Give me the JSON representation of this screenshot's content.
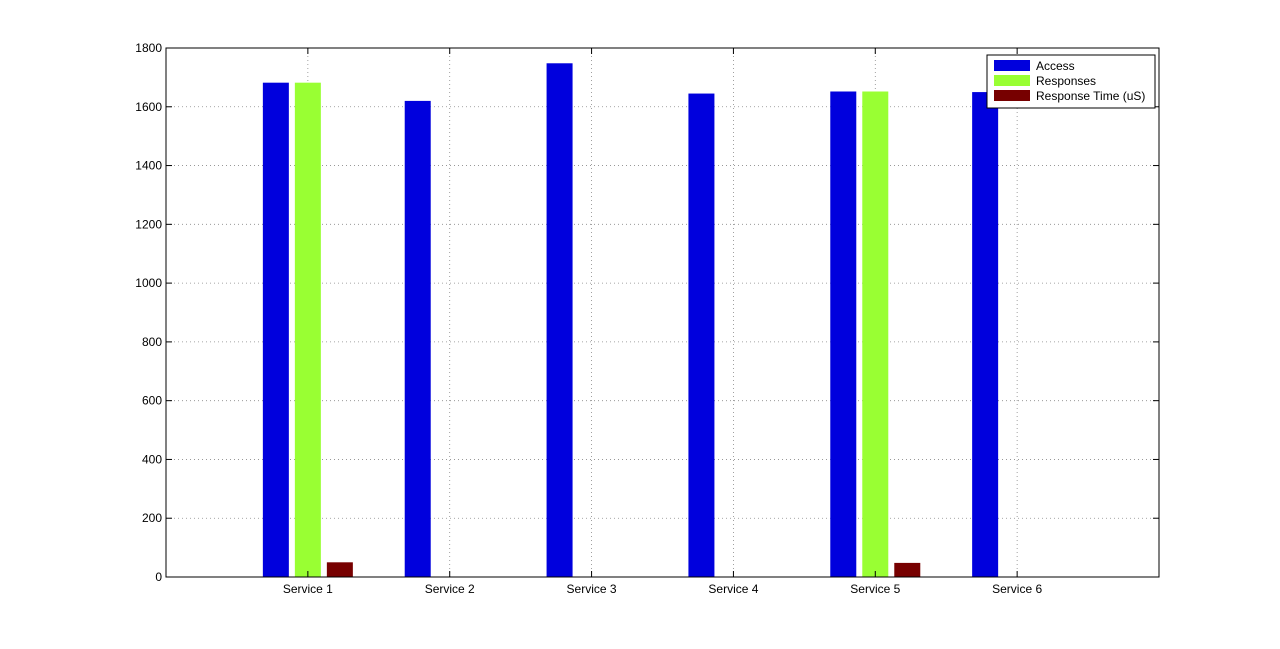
{
  "chart_data": {
    "type": "bar",
    "title": "",
    "xlabel": "",
    "ylabel": "",
    "categories": [
      "Service 1",
      "Service 2",
      "Service 3",
      "Service 4",
      "Service 5",
      "Service 6"
    ],
    "series": [
      {
        "name": "Access",
        "color": "#0000DD",
        "values": [
          1682,
          1620,
          1748,
          1645,
          1652,
          1650
        ]
      },
      {
        "name": "Responses",
        "color": "#99FF33",
        "values": [
          1682,
          0,
          0,
          0,
          1652,
          0
        ]
      },
      {
        "name": "Response Time (uS)",
        "color": "#770000",
        "values": [
          50,
          0,
          0,
          0,
          48,
          0
        ]
      }
    ],
    "ylim": [
      0,
      1800
    ],
    "yticks": [
      0,
      200,
      400,
      600,
      800,
      1000,
      1200,
      1400,
      1600,
      1800
    ],
    "grid": true,
    "legend_position": "top-right"
  }
}
